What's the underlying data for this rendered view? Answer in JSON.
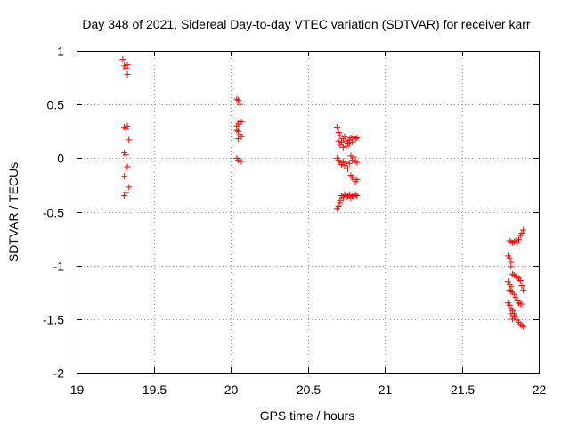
{
  "chart_data": {
    "type": "scatter",
    "title": "Day 348 of 2021, Sidereal Day-to-day VTEC variation (SDTVAR) for receiver karr",
    "xlabel": "GPS time / hours",
    "ylabel": "SDTVAR / TECUs",
    "xlim": [
      19,
      22
    ],
    "ylim": [
      -2,
      1
    ],
    "xticks": [
      "19",
      "19.5",
      "20",
      "20.5",
      "21",
      "21.5",
      "22"
    ],
    "yticks": [
      "1",
      "0.5",
      "0",
      "-0.5",
      "-1",
      "-1.5",
      "-2"
    ],
    "grid": true,
    "marker": "+",
    "color": "#ff0000",
    "series": [
      {
        "name": "SDTVAR",
        "points": [
          [
            19.3,
            0.92
          ],
          [
            19.31,
            0.86
          ],
          [
            19.32,
            0.84
          ],
          [
            19.33,
            0.87
          ],
          [
            19.33,
            0.78
          ],
          [
            19.31,
            0.29
          ],
          [
            19.32,
            0.27
          ],
          [
            19.33,
            0.3
          ],
          [
            19.34,
            0.17
          ],
          [
            19.31,
            0.05
          ],
          [
            19.32,
            0.03
          ],
          [
            19.33,
            -0.08
          ],
          [
            19.32,
            -0.1
          ],
          [
            19.31,
            -0.17
          ],
          [
            19.34,
            -0.27
          ],
          [
            19.32,
            -0.32
          ],
          [
            19.31,
            -0.35
          ],
          [
            20.04,
            0.55
          ],
          [
            20.05,
            0.54
          ],
          [
            20.06,
            0.5
          ],
          [
            20.04,
            0.3
          ],
          [
            20.05,
            0.32
          ],
          [
            20.06,
            0.34
          ],
          [
            20.07,
            0.34
          ],
          [
            20.04,
            0.26
          ],
          [
            20.05,
            0.25
          ],
          [
            20.06,
            0.22
          ],
          [
            20.05,
            0.18
          ],
          [
            20.07,
            0.2
          ],
          [
            20.04,
            0.0
          ],
          [
            20.05,
            -0.02
          ],
          [
            20.06,
            -0.03
          ],
          [
            20.07,
            -0.03
          ],
          [
            20.69,
            0.29
          ],
          [
            20.7,
            0.24
          ],
          [
            20.71,
            0.21
          ],
          [
            20.7,
            0.16
          ],
          [
            20.72,
            0.15
          ],
          [
            20.73,
            0.18
          ],
          [
            20.74,
            0.2
          ],
          [
            20.75,
            0.16
          ],
          [
            20.76,
            0.14
          ],
          [
            20.77,
            0.17
          ],
          [
            20.78,
            0.19
          ],
          [
            20.79,
            0.15
          ],
          [
            20.8,
            0.2
          ],
          [
            20.81,
            0.18
          ],
          [
            20.82,
            0.19
          ],
          [
            20.71,
            0.12
          ],
          [
            20.73,
            0.1
          ],
          [
            20.75,
            0.11
          ],
          [
            20.77,
            0.13
          ],
          [
            20.69,
            0.0
          ],
          [
            20.7,
            -0.02
          ],
          [
            20.71,
            -0.04
          ],
          [
            20.72,
            -0.06
          ],
          [
            20.73,
            -0.03
          ],
          [
            20.74,
            -0.07
          ],
          [
            20.75,
            -0.04
          ],
          [
            20.76,
            -0.1
          ],
          [
            20.77,
            -0.05
          ],
          [
            20.78,
            0.02
          ],
          [
            20.79,
            -0.02
          ],
          [
            20.8,
            0.01
          ],
          [
            20.81,
            -0.03
          ],
          [
            20.82,
            -0.04
          ],
          [
            20.79,
            -0.18
          ],
          [
            20.8,
            -0.2
          ],
          [
            20.81,
            -0.22
          ],
          [
            20.82,
            -0.2
          ],
          [
            20.78,
            -0.16
          ],
          [
            20.72,
            -0.35
          ],
          [
            20.73,
            -0.37
          ],
          [
            20.74,
            -0.34
          ],
          [
            20.75,
            -0.36
          ],
          [
            20.76,
            -0.35
          ],
          [
            20.77,
            -0.34
          ],
          [
            20.78,
            -0.37
          ],
          [
            20.79,
            -0.35
          ],
          [
            20.8,
            -0.36
          ],
          [
            20.81,
            -0.34
          ],
          [
            20.82,
            -0.35
          ],
          [
            20.71,
            -0.39
          ],
          [
            20.69,
            -0.47
          ],
          [
            20.7,
            -0.45
          ],
          [
            20.71,
            -0.42
          ],
          [
            21.84,
            -0.78
          ],
          [
            21.85,
            -0.77
          ],
          [
            21.86,
            -0.79
          ],
          [
            21.87,
            -0.76
          ],
          [
            21.88,
            -0.72
          ],
          [
            21.89,
            -0.7
          ],
          [
            21.9,
            -0.67
          ],
          [
            21.83,
            -0.79
          ],
          [
            21.82,
            -0.78
          ],
          [
            21.81,
            -0.77
          ],
          [
            21.8,
            -0.91
          ],
          [
            21.81,
            -0.93
          ],
          [
            21.82,
            -0.97
          ],
          [
            21.82,
            -1.01
          ],
          [
            21.83,
            -1.08
          ],
          [
            21.84,
            -1.09
          ],
          [
            21.85,
            -1.1
          ],
          [
            21.86,
            -1.11
          ],
          [
            21.87,
            -1.12
          ],
          [
            21.88,
            -1.14
          ],
          [
            21.89,
            -1.19
          ],
          [
            21.9,
            -1.23
          ],
          [
            21.8,
            -1.15
          ],
          [
            21.81,
            -1.18
          ],
          [
            21.82,
            -1.2
          ],
          [
            21.81,
            -1.23
          ],
          [
            21.82,
            -1.24
          ],
          [
            21.83,
            -1.25
          ],
          [
            21.84,
            -1.27
          ],
          [
            21.85,
            -1.3
          ],
          [
            21.86,
            -1.33
          ],
          [
            21.87,
            -1.35
          ],
          [
            21.88,
            -1.36
          ],
          [
            21.89,
            -1.36
          ],
          [
            21.8,
            -1.35
          ],
          [
            21.81,
            -1.37
          ],
          [
            21.82,
            -1.4
          ],
          [
            21.83,
            -1.42
          ],
          [
            21.84,
            -1.45
          ],
          [
            21.85,
            -1.48
          ],
          [
            21.86,
            -1.51
          ],
          [
            21.87,
            -1.53
          ],
          [
            21.88,
            -1.55
          ],
          [
            21.89,
            -1.56
          ],
          [
            21.9,
            -1.57
          ],
          [
            21.83,
            -1.5
          ],
          [
            21.84,
            -1.47
          ],
          [
            21.82,
            -1.45
          ]
        ]
      }
    ]
  }
}
